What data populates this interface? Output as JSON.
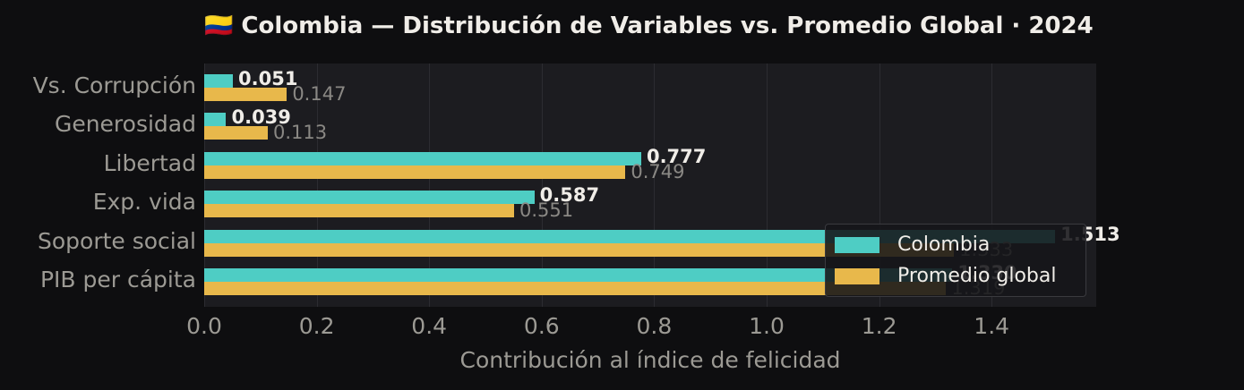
{
  "title": "🇨🇴 Colombia — Distribución de Variables vs. Promedio Global · 2024",
  "colors": {
    "colombia": "#4ecdc4",
    "global": "#e8b84b",
    "background": "#0e0e10",
    "plot_bg": "#1c1c20"
  },
  "legend": {
    "colombia": "Colombia",
    "global": "Promedio global"
  },
  "xaxis": {
    "label": "Contribución al índice de felicidad",
    "ticks": [
      "0.0",
      "0.2",
      "0.4",
      "0.6",
      "0.8",
      "1.0",
      "1.2",
      "1.4"
    ]
  },
  "rows": [
    {
      "label": "Vs. Corrupción",
      "colombia": "0.051",
      "global": "0.147"
    },
    {
      "label": "Generosidad",
      "colombia": "0.039",
      "global": "0.113"
    },
    {
      "label": "Libertad",
      "colombia": "0.777",
      "global": "0.749"
    },
    {
      "label": "Exp. vida",
      "colombia": "0.587",
      "global": "0.551"
    },
    {
      "label": "Soporte social",
      "colombia": "1.513",
      "global": "1.333"
    },
    {
      "label": "PIB per cápita",
      "colombia": "1.330",
      "global": "1.319"
    }
  ],
  "chart_data": {
    "type": "bar",
    "orientation": "horizontal",
    "title": "🇨🇴 Colombia — Distribución de Variables vs. Promedio Global · 2024",
    "categories": [
      "Vs. Corrupción",
      "Generosidad",
      "Libertad",
      "Exp. vida",
      "Soporte social",
      "PIB per cápita"
    ],
    "series": [
      {
        "name": "Colombia",
        "values": [
          0.051,
          0.039,
          0.777,
          0.587,
          1.513,
          1.33
        ]
      },
      {
        "name": "Promedio global",
        "values": [
          0.147,
          0.113,
          0.749,
          0.551,
          1.333,
          1.319
        ]
      }
    ],
    "xlabel": "Contribución al índice de felicidad",
    "ylabel": "",
    "xlim": [
      0,
      1.585
    ],
    "grid": true,
    "legend_position": "lower right"
  }
}
